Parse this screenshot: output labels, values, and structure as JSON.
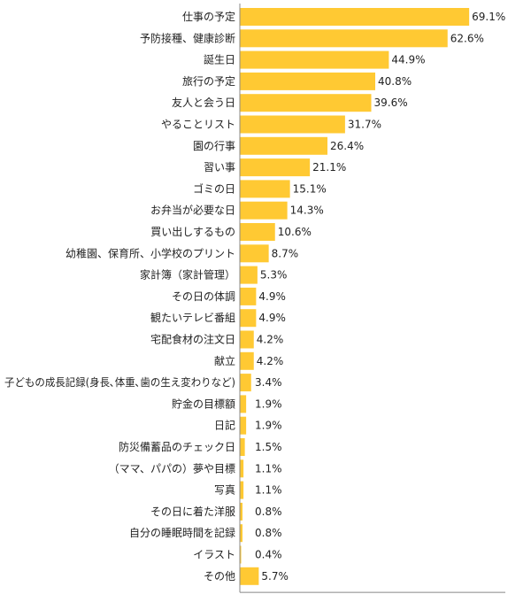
{
  "chart_data": {
    "type": "bar",
    "orientation": "horizontal",
    "categories": [
      "仕事の予定",
      "予防接種、健康診断",
      "誕生日",
      "旅行の予定",
      "友人と会う日",
      "やることリスト",
      "園の行事",
      "習い事",
      "ゴミの日",
      "お弁当が必要な日",
      "買い出しするもの",
      "幼稚園、保育所、小学校のプリント",
      "家計簿（家計管理）",
      "その日の体調",
      "観たいテレビ番組",
      "宅配食材の注文日",
      "献立",
      "子どもの成長記録(身長､体重､歯の生え変わりなど)",
      "貯金の目標額",
      "日記",
      "防災備蓄品のチェック日",
      "（ママ、パパの）夢や目標",
      "写真",
      "その日に着た洋服",
      "自分の睡眠時間を記録",
      "イラスト",
      "その他"
    ],
    "values": [
      69.1,
      62.6,
      44.9,
      40.8,
      39.6,
      31.7,
      26.4,
      21.1,
      15.1,
      14.3,
      10.6,
      8.7,
      5.3,
      4.9,
      4.9,
      4.2,
      4.2,
      3.4,
      1.9,
      1.9,
      1.5,
      1.1,
      1.1,
      0.8,
      0.8,
      0.4,
      5.7
    ],
    "value_labels": [
      "69.1%",
      "62.6%",
      "44.9%",
      "40.8%",
      "39.6%",
      "31.7%",
      "26.4%",
      "21.1%",
      "15.1%",
      "14.3%",
      "10.6%",
      "8.7%",
      "5.3%",
      "4.9%",
      "4.9%",
      "4.2%",
      "4.2%",
      "3.4%",
      "1.9%",
      "1.9%",
      "1.5%",
      "1.1%",
      "1.1%",
      "0.8%",
      "0.8%",
      "0.4%",
      "5.7%"
    ],
    "xlim": [
      0,
      80
    ],
    "grid": false,
    "colors": {
      "bar": "#FFC933",
      "axis": "#888888",
      "text": "#222222"
    }
  }
}
